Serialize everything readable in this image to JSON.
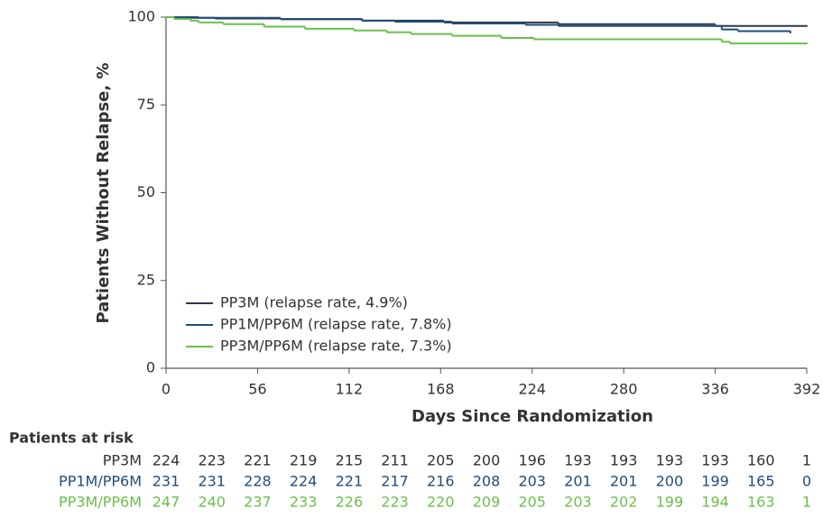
{
  "chart_data": {
    "type": "line",
    "step": true,
    "ylabel": "Patients Without Relapse, %",
    "xlabel": "Days Since Randomization",
    "xlim": [
      0,
      392
    ],
    "ylim": [
      0,
      100
    ],
    "xticks": [
      0,
      56,
      112,
      168,
      224,
      280,
      336,
      392
    ],
    "yticks": [
      0,
      25,
      50,
      75,
      100
    ],
    "legend_loc": "lower left",
    "series": [
      {
        "name": "PP3M (relapse rate, 4.9%)",
        "color": "#2f3a4a",
        "x": [
          0,
          10,
          30,
          70,
          120,
          170,
          240,
          336,
          392
        ],
        "values": [
          100,
          99.8,
          99.6,
          99.4,
          99.0,
          98.5,
          98.0,
          97.5,
          97.5
        ]
      },
      {
        "name": "PP1M/PP6M (relapse rate, 7.8%)",
        "color": "#1f4e79",
        "x": [
          0,
          20,
          70,
          120,
          140,
          175,
          220,
          240,
          340,
          350,
          382
        ],
        "values": [
          100,
          99.8,
          99.5,
          99.0,
          98.7,
          98.2,
          97.8,
          97.5,
          96.5,
          96.0,
          95.6
        ]
      },
      {
        "name": "PP3M/PP6M (relapse rate, 7.3%)",
        "color": "#6abf4b",
        "x": [
          0,
          5,
          15,
          20,
          35,
          60,
          85,
          115,
          135,
          150,
          175,
          205,
          225,
          340,
          345,
          392
        ],
        "values": [
          100,
          99.5,
          99.0,
          98.5,
          98.0,
          97.3,
          96.7,
          96.2,
          95.7,
          95.2,
          94.7,
          94.1,
          93.7,
          93.0,
          92.5,
          92.5
        ]
      }
    ],
    "risk_table": {
      "title": "Patients at risk",
      "rows": [
        {
          "name": "PP3M",
          "color": "#333333",
          "counts": [
            224,
            223,
            221,
            219,
            215,
            211,
            205,
            200,
            196,
            193,
            193,
            193,
            193,
            160,
            1
          ]
        },
        {
          "name": "PP1M/PP6M",
          "color": "#1f4e79",
          "counts": [
            231,
            231,
            228,
            224,
            221,
            217,
            216,
            208,
            203,
            201,
            201,
            200,
            199,
            165,
            0
          ]
        },
        {
          "name": "PP3M/PP6M",
          "color": "#6abf4b",
          "counts": [
            247,
            240,
            237,
            233,
            226,
            223,
            220,
            209,
            205,
            203,
            202,
            199,
            194,
            163,
            1
          ]
        }
      ]
    }
  }
}
